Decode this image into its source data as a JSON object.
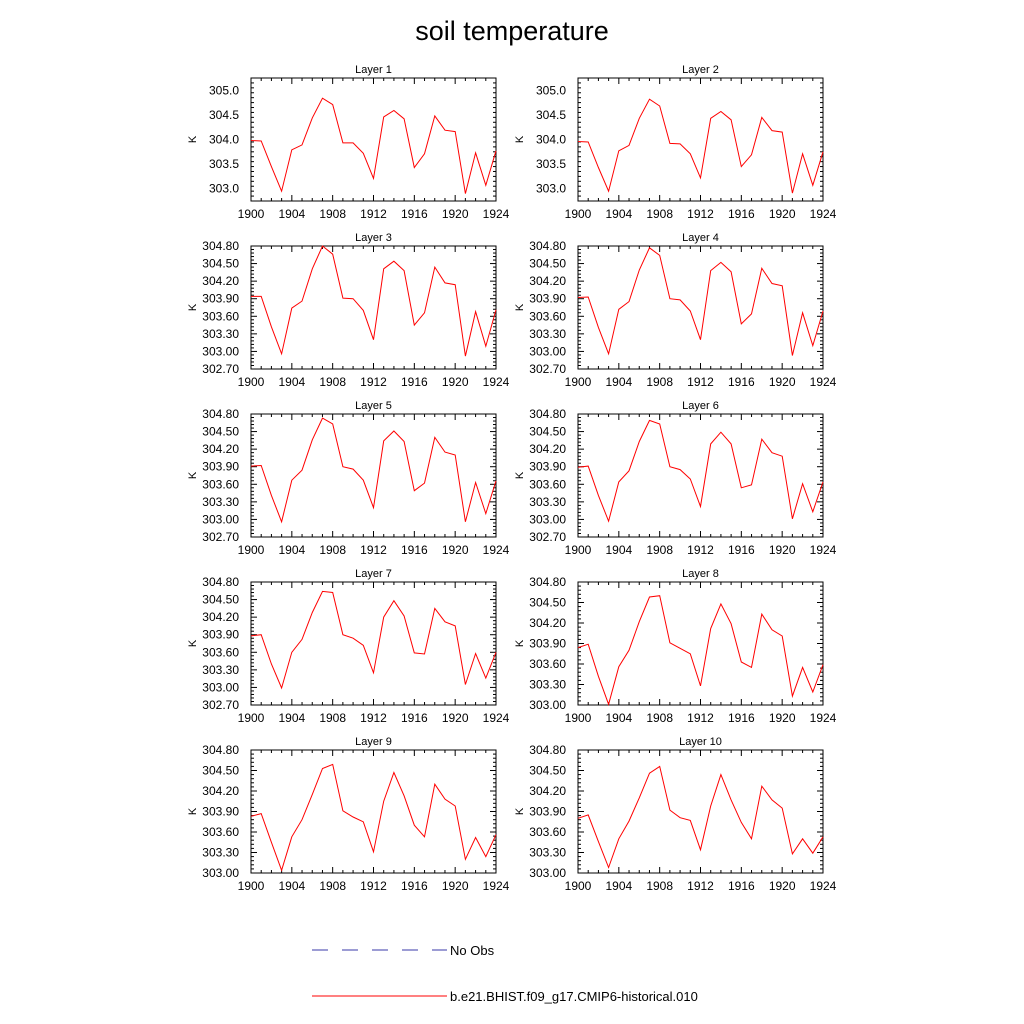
{
  "title": "soil temperature",
  "legend": {
    "no_obs_label": "No Obs",
    "model_label": "b.e21.BHIST.f09_g17.CMIP6-historical.010",
    "no_obs_color": "#3a3aa8",
    "model_color": "#ff0000"
  },
  "chart_data": [
    {
      "type": "line",
      "title": "Layer 1",
      "ylabel": "K",
      "xlim": [
        1900,
        1924
      ],
      "ylim": [
        302.75,
        305.25
      ],
      "xticks": [
        "1900",
        "1904",
        "1908",
        "1912",
        "1916",
        "1920",
        "1924"
      ],
      "yticks": [
        "303.0",
        "303.5",
        "304.0",
        "304.5",
        "305.0"
      ],
      "series": [
        {
          "color": "#ff0000",
          "x": [
            1900,
            1901,
            1902,
            1903,
            1904,
            1905,
            1906,
            1907,
            1908,
            1909,
            1910,
            1911,
            1912,
            1913,
            1914,
            1915,
            1916,
            1917,
            1918,
            1919,
            1920,
            1921,
            1922,
            1923,
            1924
          ],
          "values": [
            303.98,
            303.97,
            303.45,
            302.95,
            303.79,
            303.89,
            304.44,
            304.84,
            304.71,
            303.93,
            303.93,
            303.72,
            303.21,
            304.46,
            304.59,
            304.42,
            303.43,
            303.71,
            304.48,
            304.19,
            304.16,
            302.9,
            303.73,
            303.07,
            303.77
          ]
        }
      ]
    },
    {
      "type": "line",
      "title": "Layer 2",
      "ylabel": "K",
      "xlim": [
        1900,
        1924
      ],
      "ylim": [
        302.75,
        305.25
      ],
      "xticks": [
        "1900",
        "1904",
        "1908",
        "1912",
        "1916",
        "1920",
        "1924"
      ],
      "yticks": [
        "303.0",
        "303.5",
        "304.0",
        "304.5",
        "305.0"
      ],
      "series": [
        {
          "color": "#ff0000",
          "x": [
            1900,
            1901,
            1902,
            1903,
            1904,
            1905,
            1906,
            1907,
            1908,
            1909,
            1910,
            1911,
            1912,
            1913,
            1914,
            1915,
            1916,
            1917,
            1918,
            1919,
            1920,
            1921,
            1922,
            1923,
            1924
          ],
          "values": [
            303.96,
            303.95,
            303.43,
            302.95,
            303.77,
            303.88,
            304.43,
            304.82,
            304.68,
            303.92,
            303.91,
            303.71,
            303.22,
            304.43,
            304.57,
            304.4,
            303.45,
            303.69,
            304.45,
            304.18,
            304.15,
            302.91,
            303.71,
            303.07,
            303.75
          ]
        }
      ]
    },
    {
      "type": "line",
      "title": "Layer 3",
      "ylabel": "K",
      "xlim": [
        1900,
        1924
      ],
      "ylim": [
        302.7,
        304.8
      ],
      "xticks": [
        "1900",
        "1904",
        "1908",
        "1912",
        "1916",
        "1920",
        "1924"
      ],
      "yticks": [
        "302.70",
        "303.00",
        "303.30",
        "303.60",
        "303.90",
        "304.20",
        "304.50",
        "304.80"
      ],
      "series": [
        {
          "color": "#ff0000",
          "x": [
            1900,
            1901,
            1902,
            1903,
            1904,
            1905,
            1906,
            1907,
            1908,
            1909,
            1910,
            1911,
            1912,
            1913,
            1914,
            1915,
            1916,
            1917,
            1918,
            1919,
            1920,
            1921,
            1922,
            1923,
            1924
          ],
          "values": [
            303.94,
            303.94,
            303.42,
            302.96,
            303.74,
            303.86,
            304.41,
            304.8,
            304.66,
            303.91,
            303.9,
            303.7,
            303.2,
            304.41,
            304.54,
            304.38,
            303.45,
            303.66,
            304.44,
            304.17,
            304.14,
            302.92,
            303.68,
            303.09,
            303.71
          ]
        }
      ]
    },
    {
      "type": "line",
      "title": "Layer 4",
      "ylabel": "K",
      "xlim": [
        1900,
        1924
      ],
      "ylim": [
        302.7,
        304.8
      ],
      "xticks": [
        "1900",
        "1904",
        "1908",
        "1912",
        "1916",
        "1920",
        "1924"
      ],
      "yticks": [
        "302.70",
        "303.00",
        "303.30",
        "303.60",
        "303.90",
        "304.20",
        "304.50",
        "304.80"
      ],
      "series": [
        {
          "color": "#ff0000",
          "x": [
            1900,
            1901,
            1902,
            1903,
            1904,
            1905,
            1906,
            1907,
            1908,
            1909,
            1910,
            1911,
            1912,
            1913,
            1914,
            1915,
            1916,
            1917,
            1918,
            1919,
            1920,
            1921,
            1922,
            1923,
            1924
          ],
          "values": [
            303.92,
            303.93,
            303.41,
            302.96,
            303.72,
            303.85,
            304.39,
            304.77,
            304.64,
            303.9,
            303.88,
            303.69,
            303.2,
            304.38,
            304.52,
            304.36,
            303.47,
            303.64,
            304.42,
            304.16,
            304.12,
            302.93,
            303.66,
            303.1,
            303.69
          ]
        }
      ]
    },
    {
      "type": "line",
      "title": "Layer 5",
      "ylabel": "K",
      "xlim": [
        1900,
        1924
      ],
      "ylim": [
        302.7,
        304.8
      ],
      "xticks": [
        "1900",
        "1904",
        "1908",
        "1912",
        "1916",
        "1920",
        "1924"
      ],
      "yticks": [
        "302.70",
        "303.00",
        "303.30",
        "303.60",
        "303.90",
        "304.20",
        "304.50",
        "304.80"
      ],
      "series": [
        {
          "color": "#ff0000",
          "x": [
            1900,
            1901,
            1902,
            1903,
            1904,
            1905,
            1906,
            1907,
            1908,
            1909,
            1910,
            1911,
            1912,
            1913,
            1914,
            1915,
            1916,
            1917,
            1918,
            1919,
            1920,
            1921,
            1922,
            1923,
            1924
          ],
          "values": [
            303.91,
            303.92,
            303.41,
            302.96,
            303.67,
            303.84,
            304.36,
            304.73,
            304.63,
            303.9,
            303.86,
            303.67,
            303.2,
            304.34,
            304.51,
            304.33,
            303.49,
            303.62,
            304.4,
            304.15,
            304.1,
            302.96,
            303.63,
            303.1,
            303.66
          ]
        }
      ]
    },
    {
      "type": "line",
      "title": "Layer 6",
      "ylabel": "K",
      "xlim": [
        1900,
        1924
      ],
      "ylim": [
        302.7,
        304.8
      ],
      "xticks": [
        "1900",
        "1904",
        "1908",
        "1912",
        "1916",
        "1920",
        "1924"
      ],
      "yticks": [
        "302.70",
        "303.00",
        "303.30",
        "303.60",
        "303.90",
        "304.20",
        "304.50",
        "304.80"
      ],
      "series": [
        {
          "color": "#ff0000",
          "x": [
            1900,
            1901,
            1902,
            1903,
            1904,
            1905,
            1906,
            1907,
            1908,
            1909,
            1910,
            1911,
            1912,
            1913,
            1914,
            1915,
            1916,
            1917,
            1918,
            1919,
            1920,
            1921,
            1922,
            1923,
            1924
          ],
          "values": [
            303.89,
            303.91,
            303.41,
            302.97,
            303.64,
            303.83,
            304.33,
            304.69,
            304.63,
            303.9,
            303.85,
            303.69,
            303.22,
            304.29,
            304.49,
            304.29,
            303.54,
            303.59,
            304.37,
            304.14,
            304.08,
            303.01,
            303.61,
            303.13,
            303.64
          ]
        }
      ]
    },
    {
      "type": "line",
      "title": "Layer 7",
      "ylabel": "K",
      "xlim": [
        1900,
        1924
      ],
      "ylim": [
        302.7,
        304.8
      ],
      "xticks": [
        "1900",
        "1904",
        "1908",
        "1912",
        "1916",
        "1920",
        "1924"
      ],
      "yticks": [
        "302.70",
        "303.00",
        "303.30",
        "303.60",
        "303.90",
        "304.20",
        "304.50",
        "304.80"
      ],
      "series": [
        {
          "color": "#ff0000",
          "x": [
            1900,
            1901,
            1902,
            1903,
            1904,
            1905,
            1906,
            1907,
            1908,
            1909,
            1910,
            1911,
            1912,
            1913,
            1914,
            1915,
            1916,
            1917,
            1918,
            1919,
            1920,
            1921,
            1922,
            1923,
            1924
          ],
          "values": [
            303.88,
            303.9,
            303.4,
            302.99,
            303.6,
            303.82,
            304.28,
            304.64,
            304.62,
            303.9,
            303.84,
            303.72,
            303.25,
            304.2,
            304.48,
            304.22,
            303.59,
            303.57,
            304.35,
            304.12,
            304.05,
            303.05,
            303.58,
            303.16,
            303.6
          ]
        }
      ]
    },
    {
      "type": "line",
      "title": "Layer 8",
      "ylabel": "K",
      "xlim": [
        1900,
        1924
      ],
      "ylim": [
        303.0,
        304.8
      ],
      "xticks": [
        "1900",
        "1904",
        "1908",
        "1912",
        "1916",
        "1920",
        "1924"
      ],
      "yticks": [
        "303.00",
        "303.30",
        "303.60",
        "303.90",
        "304.20",
        "304.50",
        "304.80"
      ],
      "series": [
        {
          "color": "#ff0000",
          "x": [
            1900,
            1901,
            1902,
            1903,
            1904,
            1905,
            1906,
            1907,
            1908,
            1909,
            1910,
            1911,
            1912,
            1913,
            1914,
            1915,
            1916,
            1917,
            1918,
            1919,
            1920,
            1921,
            1922,
            1923,
            1924
          ],
          "values": [
            303.84,
            303.89,
            303.42,
            303.01,
            303.56,
            303.8,
            304.22,
            304.58,
            304.6,
            303.91,
            303.83,
            303.75,
            303.28,
            304.12,
            304.48,
            304.19,
            303.63,
            303.55,
            304.33,
            304.1,
            304.01,
            303.13,
            303.55,
            303.19,
            303.59
          ]
        }
      ]
    },
    {
      "type": "line",
      "title": "Layer 9",
      "ylabel": "K",
      "xlim": [
        1900,
        1924
      ],
      "ylim": [
        303.0,
        304.8
      ],
      "xticks": [
        "1900",
        "1904",
        "1908",
        "1912",
        "1916",
        "1920",
        "1924"
      ],
      "yticks": [
        "303.00",
        "303.30",
        "303.60",
        "303.90",
        "304.20",
        "304.50",
        "304.80"
      ],
      "series": [
        {
          "color": "#ff0000",
          "x": [
            1900,
            1901,
            1902,
            1903,
            1904,
            1905,
            1906,
            1907,
            1908,
            1909,
            1910,
            1911,
            1912,
            1913,
            1914,
            1915,
            1916,
            1917,
            1918,
            1919,
            1920,
            1921,
            1922,
            1923,
            1924
          ],
          "values": [
            303.83,
            303.87,
            303.45,
            303.04,
            303.53,
            303.78,
            304.15,
            304.53,
            304.59,
            303.91,
            303.82,
            303.75,
            303.31,
            304.05,
            304.47,
            304.13,
            303.7,
            303.53,
            304.3,
            304.08,
            303.98,
            303.2,
            303.52,
            303.24,
            303.56
          ]
        }
      ]
    },
    {
      "type": "line",
      "title": "Layer 10",
      "ylabel": "K",
      "xlim": [
        1900,
        1924
      ],
      "ylim": [
        303.0,
        304.8
      ],
      "xticks": [
        "1900",
        "1904",
        "1908",
        "1912",
        "1916",
        "1920",
        "1924"
      ],
      "yticks": [
        "303.00",
        "303.30",
        "303.60",
        "303.90",
        "304.20",
        "304.50",
        "304.80"
      ],
      "series": [
        {
          "color": "#ff0000",
          "x": [
            1900,
            1901,
            1902,
            1903,
            1904,
            1905,
            1906,
            1907,
            1908,
            1909,
            1910,
            1911,
            1912,
            1913,
            1914,
            1915,
            1916,
            1917,
            1918,
            1919,
            1920,
            1921,
            1922,
            1923,
            1924
          ],
          "values": [
            303.8,
            303.85,
            303.46,
            303.08,
            303.5,
            303.76,
            304.1,
            304.46,
            304.56,
            303.92,
            303.81,
            303.77,
            303.34,
            303.98,
            304.44,
            304.07,
            303.74,
            303.5,
            304.27,
            304.07,
            303.95,
            303.28,
            303.5,
            303.29,
            303.53
          ]
        }
      ]
    }
  ]
}
